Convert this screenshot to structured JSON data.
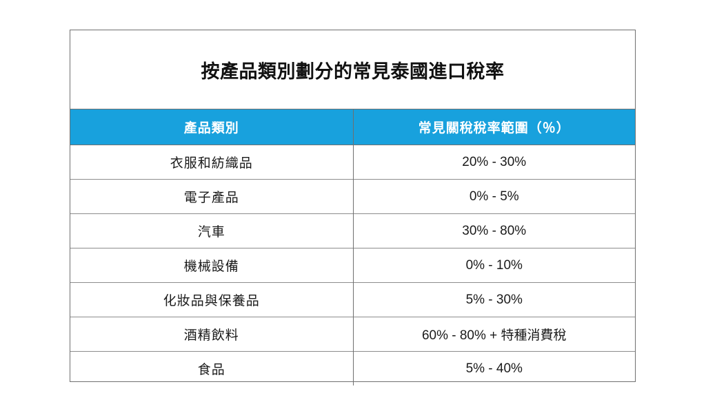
{
  "title": "按產品類別劃分的常見泰國進口稅率",
  "header": {
    "category": "產品類別",
    "rate": "常見關稅稅率範圍（％）"
  },
  "colors": {
    "header_bg": "#18a1dd",
    "header_text": "#ffffff",
    "border": "#6f6f6f"
  },
  "rows": [
    {
      "category": "衣服和紡織品",
      "rate": "20% - 30%"
    },
    {
      "category": "電子產品",
      "rate": "0% - 5%"
    },
    {
      "category": "汽車",
      "rate": "30% - 80%"
    },
    {
      "category": "機械設備",
      "rate": "0% - 10%"
    },
    {
      "category": "化妝品與保養品",
      "rate": "5% - 30%"
    },
    {
      "category": "酒精飲料",
      "rate": "60% - 80% + 特種消費稅"
    },
    {
      "category": "食品",
      "rate": "5% - 40%"
    }
  ]
}
